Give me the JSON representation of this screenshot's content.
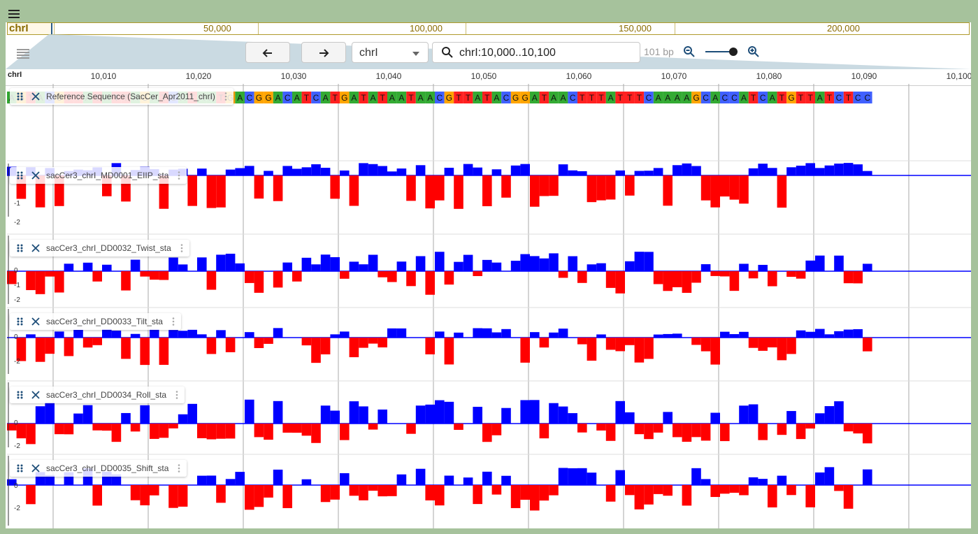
{
  "topbar": {
    "menu_icon": "hamburger-icon"
  },
  "overview": {
    "chromosome": "chrI",
    "ticks": [
      "50,000",
      "100,000",
      "150,000",
      "200,000"
    ]
  },
  "controls": {
    "back_icon": "arrow-left-icon",
    "forward_icon": "arrow-right-icon",
    "ref_select": "chrI",
    "locstring": "chrI:10,000..10,100",
    "bp_label": "101 bp",
    "zoom_out_icon": "zoom-out-icon",
    "zoom_in_icon": "zoom-in-icon",
    "zoom_level": 1.0,
    "track_list_icon": "list-icon"
  },
  "ruler": {
    "chromosome": "chrI",
    "ticks": [
      "10,010",
      "10,020",
      "10,030",
      "10,040",
      "10,050",
      "10,060",
      "10,070",
      "10,080",
      "10,090",
      "10,100"
    ]
  },
  "sequence": "AGTACGTTATATTAGATCATAATGACGGACATCATGATATAATAACGTTATACGGATAACTTTATTTCAAAAGCACCATCATGTTATCTCC",
  "base_colors": {
    "A": "#33aa33",
    "C": "#4060ff",
    "G": "#ffa500",
    "T": "#ff2020"
  },
  "tracks": [
    {
      "label": "Reference Sequence (SacCer_Apr2011_chrI)"
    },
    {
      "label": "sacCer3_chrI_MD0001_EIIP_sta",
      "yticks": [
        "-1",
        "-2"
      ]
    },
    {
      "label": "sacCer3_chrI_DD0032_Twist_sta",
      "yticks": [
        "0",
        "-1",
        "-2"
      ]
    },
    {
      "label": "sacCer3_chrI_DD0033_Tilt_sta",
      "yticks": [
        "0",
        "-2"
      ]
    },
    {
      "label": "sacCer3_chrI_DD0034_Roll_sta",
      "yticks": [
        "0",
        "-2"
      ]
    },
    {
      "label": "sacCer3_chrI_DD0035_Shift_sta",
      "yticks": [
        "0",
        "-2"
      ]
    }
  ],
  "colors": {
    "positive": "#0000ff",
    "negative": "#ff0000",
    "header": "#a6c29c"
  }
}
